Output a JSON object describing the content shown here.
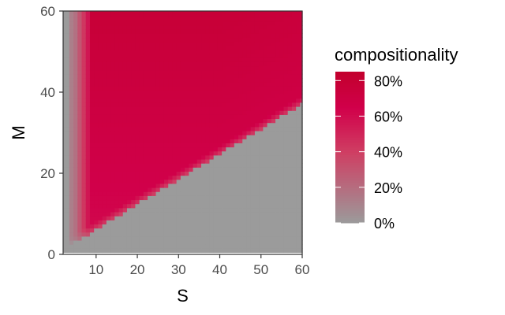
{
  "chart_data": {
    "type": "heatmap",
    "title": "",
    "xlabel": "S",
    "ylabel": "M",
    "xlim": [
      2,
      60
    ],
    "ylim": [
      0,
      60
    ],
    "x_ticks": [
      10,
      20,
      30,
      40,
      50,
      60
    ],
    "y_ticks": [
      0,
      20,
      40,
      60
    ],
    "grid": false,
    "value_description": "compositionality (%) as a function of S and M; ~0% (grey) where M < ~0.62*S, rising to ~70-80% (red) above",
    "boundary_slope_M_per_S": 0.62,
    "low_strip_S_max": 6,
    "representative_values": [
      {
        "S": 5,
        "M": 50,
        "value": 20
      },
      {
        "S": 8,
        "M": 20,
        "value": 65
      },
      {
        "S": 12,
        "M": 55,
        "value": 75
      },
      {
        "S": 20,
        "M": 40,
        "value": 72
      },
      {
        "S": 30,
        "M": 55,
        "value": 78
      },
      {
        "S": 40,
        "M": 50,
        "value": 72
      },
      {
        "S": 50,
        "M": 20,
        "value": 0
      },
      {
        "S": 60,
        "M": 10,
        "value": 0
      }
    ],
    "legend": {
      "title": "compositionality",
      "position": "right",
      "ticks": [
        "0%",
        "20%",
        "40%",
        "60%",
        "80%"
      ],
      "tick_values": [
        0,
        20,
        40,
        60,
        80
      ],
      "range": [
        0,
        85
      ]
    },
    "colors": {
      "low": "#9b9b9b",
      "mid": "#cf3e63",
      "high": "#c2002d",
      "midhigh": "#d1004a"
    }
  }
}
